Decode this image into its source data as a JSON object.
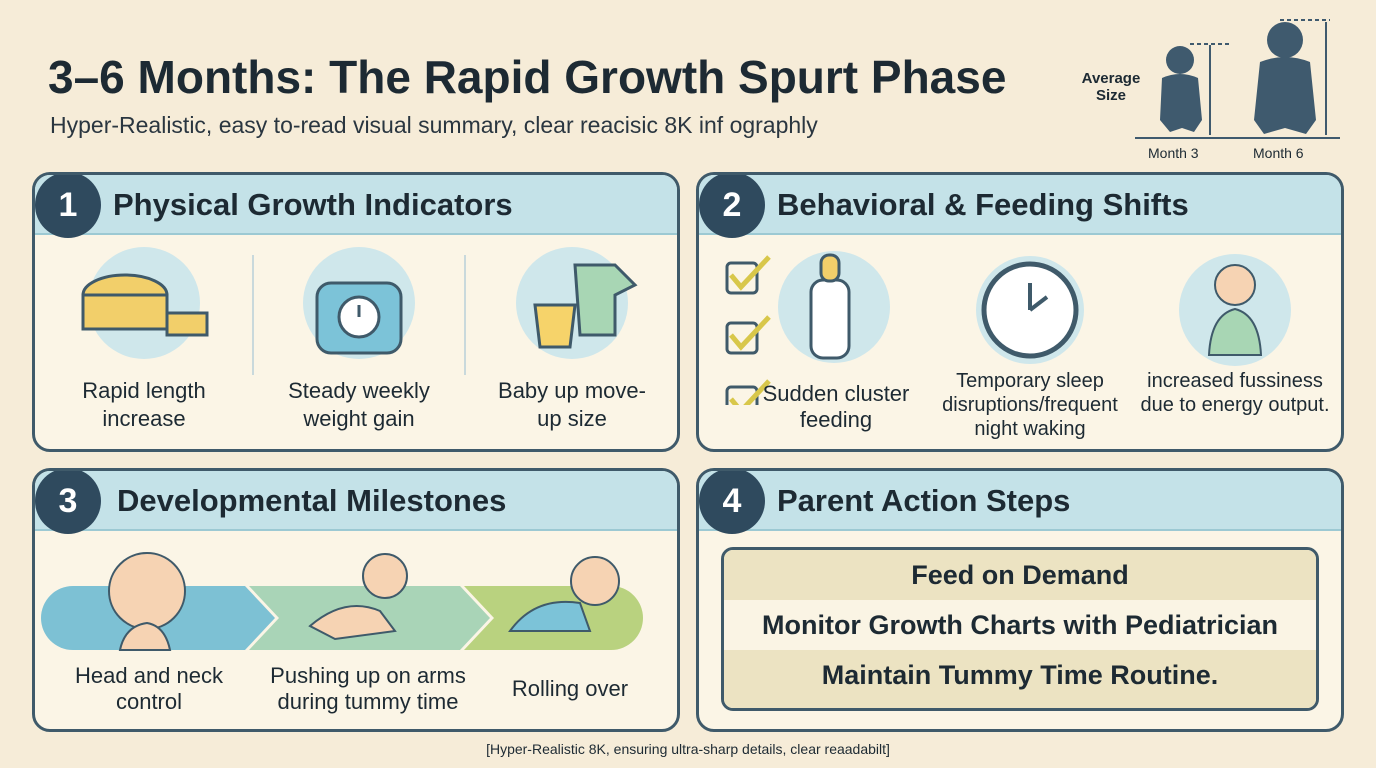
{
  "header": {
    "title": "3–6 Months: The Rapid Growth Spurt Phase",
    "subtitle": "Hyper-Realistic, easy to-read visual summary, clear reacisic 8K inf ographly"
  },
  "size_graphic": {
    "label": "Average Size",
    "months": [
      "Month 3",
      "Month 6"
    ]
  },
  "panels": [
    {
      "number": "1",
      "title": "Physical Growth Indicators",
      "items": [
        "Rapid length increase",
        "Steady weekly weight gain",
        "Baby up move-up size"
      ]
    },
    {
      "number": "2",
      "title": "Behavioral & Feeding Shifts",
      "items": [
        "Sudden cluster feeding",
        "Temporary sleep disruptions/frequent night waking",
        "increased fussiness due to energy output."
      ]
    },
    {
      "number": "3",
      "title": "Developmental Milestones",
      "items": [
        "Head and neck control",
        "Pushing up on arms during tummy time",
        "Rolling over"
      ]
    },
    {
      "number": "4",
      "title": "Parent Action Steps",
      "items": [
        "Feed on Demand",
        "Monitor Growth Charts with Pediatrician",
        "Maintain Tummy Time Routine."
      ]
    }
  ],
  "footer": "[Hyper-Realistic 8K, ensuring ultra-sharp details, clear reaadabilt]"
}
